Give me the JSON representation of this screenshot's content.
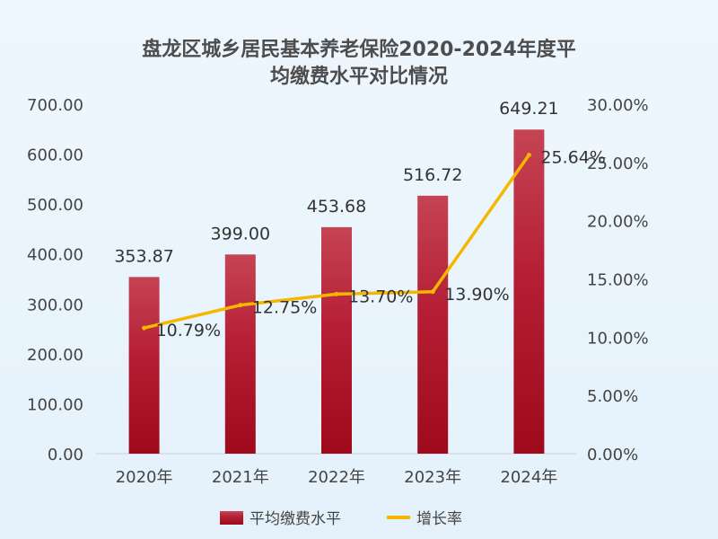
{
  "chart_data": {
    "type": "bar",
    "title_line1": "盘龙区城乡居民基本养老保险2020-2024年度平",
    "title_line2": "均缴费水平对比情况",
    "categories": [
      "2020年",
      "2021年",
      "2022年",
      "2023年",
      "2024年"
    ],
    "series": [
      {
        "name": "平均缴费水平",
        "type": "bar",
        "axis": "left",
        "color": "#b01228",
        "values": [
          353.87,
          399.0,
          453.68,
          516.72,
          649.21
        ],
        "labels": [
          "353.87",
          "399.00",
          "453.68",
          "516.72",
          "649.21"
        ]
      },
      {
        "name": "增长率",
        "type": "line",
        "axis": "right",
        "color": "#f5b800",
        "values": [
          10.79,
          12.75,
          13.7,
          13.9,
          25.64
        ],
        "labels": [
          "10.79%",
          "12.75%",
          "13.70%",
          "13.90%",
          "25.64%"
        ]
      }
    ],
    "y_left": {
      "range": [
        0,
        700
      ],
      "ticks": [
        "0.00",
        "100.00",
        "200.00",
        "300.00",
        "400.00",
        "500.00",
        "600.00",
        "700.00"
      ]
    },
    "y_right": {
      "range": [
        0,
        30
      ],
      "ticks": [
        "0.00%",
        "5.00%",
        "10.00%",
        "15.00%",
        "20.00%",
        "25.00%",
        "30.00%"
      ]
    },
    "grid": false,
    "legend_position": "bottom"
  }
}
